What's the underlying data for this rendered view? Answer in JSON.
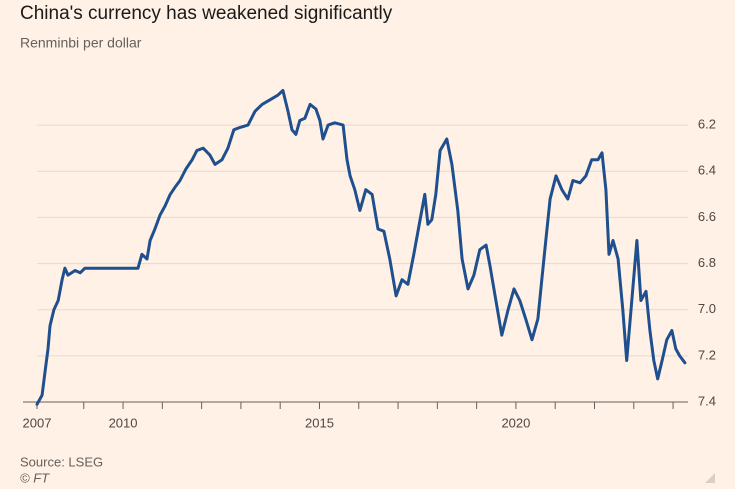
{
  "chart_data": {
    "type": "line",
    "title": "China's currency has weakened significantly",
    "subtitle": "Renminbi per dollar",
    "source": "Source: LSEG",
    "credit": "© FT",
    "inverted_y": true,
    "grid": true,
    "ylim": [
      7.4,
      6.0
    ],
    "yticks": [
      6.2,
      6.4,
      6.6,
      6.8,
      {
        "value": 7.0,
        "label": "7.0"
      },
      7.2,
      7.4
    ],
    "xlim": [
      2007.81,
      2024.38
    ],
    "xticks": [
      {
        "value": 2007.81,
        "label": "2007"
      },
      2010,
      2015,
      2020
    ],
    "xminor_ticks": [
      2009,
      2011,
      2012,
      2013,
      2014,
      2016,
      2017,
      2018,
      2019,
      2021,
      2022,
      2023,
      2024
    ],
    "series": [
      {
        "name": "Renminbi per dollar",
        "color": "#1f4f8f",
        "x": [
          2007.81,
          2007.94,
          2008.02,
          2008.09,
          2008.14,
          2008.24,
          2008.35,
          2008.45,
          2008.52,
          2008.6,
          2008.78,
          2008.91,
          2009.03,
          2009.41,
          2009.92,
          2010.38,
          2010.48,
          2010.61,
          2010.69,
          2010.81,
          2010.94,
          2011.07,
          2011.2,
          2011.32,
          2011.45,
          2011.6,
          2011.76,
          2011.88,
          2012.04,
          2012.21,
          2012.34,
          2012.52,
          2012.67,
          2012.82,
          2012.98,
          2013.18,
          2013.36,
          2013.54,
          2013.74,
          2013.94,
          2014.07,
          2014.2,
          2014.3,
          2014.4,
          2014.5,
          2014.63,
          2014.76,
          2014.91,
          2015.01,
          2015.09,
          2015.22,
          2015.39,
          2015.6,
          2015.7,
          2015.78,
          2015.9,
          2016.03,
          2016.18,
          2016.34,
          2016.49,
          2016.64,
          2016.79,
          2016.95,
          2017.1,
          2017.25,
          2017.4,
          2017.56,
          2017.68,
          2017.76,
          2017.86,
          2017.96,
          2018.07,
          2018.24,
          2018.37,
          2018.52,
          2018.63,
          2018.78,
          2018.93,
          2019.08,
          2019.24,
          2019.34,
          2019.49,
          2019.64,
          2019.8,
          2019.95,
          2020.1,
          2020.25,
          2020.41,
          2020.56,
          2020.66,
          2020.76,
          2020.87,
          2021.02,
          2021.17,
          2021.32,
          2021.45,
          2021.63,
          2021.78,
          2021.93,
          2022.09,
          2022.19,
          2022.29,
          2022.37,
          2022.47,
          2022.6,
          2022.72,
          2022.82,
          2022.95,
          2023.08,
          2023.18,
          2023.31,
          2023.41,
          2023.51,
          2023.61,
          2023.72,
          2023.84,
          2023.97,
          2024.07,
          2024.17,
          2024.3
        ],
        "values": [
          7.41,
          7.37,
          7.26,
          7.17,
          7.07,
          7.0,
          6.96,
          6.87,
          6.82,
          6.85,
          6.83,
          6.84,
          6.82,
          6.82,
          6.82,
          6.82,
          6.76,
          6.78,
          6.7,
          6.65,
          6.59,
          6.55,
          6.5,
          6.47,
          6.44,
          6.39,
          6.35,
          6.31,
          6.3,
          6.33,
          6.37,
          6.35,
          6.3,
          6.22,
          6.21,
          6.2,
          6.14,
          6.11,
          6.09,
          6.07,
          6.05,
          6.14,
          6.22,
          6.24,
          6.18,
          6.17,
          6.11,
          6.13,
          6.18,
          6.26,
          6.2,
          6.19,
          6.2,
          6.35,
          6.42,
          6.48,
          6.57,
          6.48,
          6.5,
          6.65,
          6.66,
          6.78,
          6.94,
          6.87,
          6.89,
          6.76,
          6.61,
          6.5,
          6.63,
          6.61,
          6.5,
          6.31,
          6.26,
          6.37,
          6.57,
          6.78,
          6.91,
          6.85,
          6.74,
          6.72,
          6.81,
          6.96,
          7.11,
          7.0,
          6.91,
          6.96,
          7.04,
          7.13,
          7.04,
          6.87,
          6.7,
          6.52,
          6.42,
          6.48,
          6.52,
          6.44,
          6.45,
          6.42,
          6.35,
          6.35,
          6.32,
          6.48,
          6.76,
          6.7,
          6.78,
          7.0,
          7.22,
          6.96,
          6.7,
          6.96,
          6.92,
          7.09,
          7.22,
          7.3,
          7.22,
          7.13,
          7.09,
          7.17,
          7.2,
          7.23
        ]
      }
    ]
  }
}
